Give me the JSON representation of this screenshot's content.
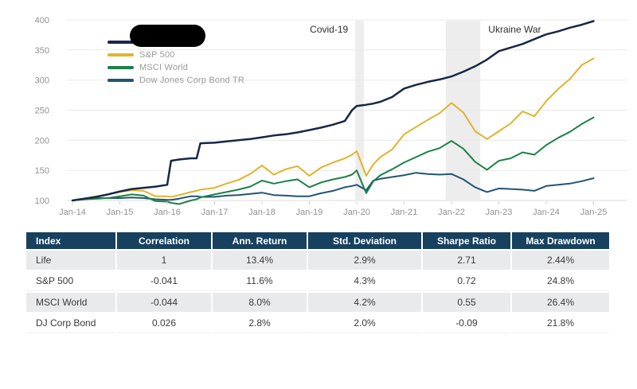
{
  "chart": {
    "legend": {
      "items": [
        {
          "label": "",
          "redacted": true,
          "color": "#182745"
        },
        {
          "label": "S&P 500",
          "redacted": false,
          "color": "#e2b32e"
        },
        {
          "label": "MSCI World",
          "redacted": false,
          "color": "#1e8049"
        },
        {
          "label": "Dow Jones Corp Bond TR",
          "redacted": false,
          "color": "#215571"
        }
      ]
    }
  },
  "chart_data": {
    "type": "line",
    "title": "",
    "xlabel": "",
    "ylabel": "",
    "x_unit": "decimal year",
    "grid": true,
    "legend_position": "top-left",
    "ylim": [
      100,
      400
    ],
    "yticks": [
      100,
      150,
      200,
      250,
      300,
      350,
      400
    ],
    "xtick_labels": [
      "Jan-14",
      "Jan-15",
      "Jan-16",
      "Jan-17",
      "Jan-18",
      "Jan-19",
      "Jan-20",
      "Jan-21",
      "Jan-22",
      "Jan-23",
      "Jan-24",
      "Jan-25"
    ],
    "x": [
      2014,
      2014.25,
      2014.5,
      2014.75,
      2015,
      2015.25,
      2015.5,
      2015.75,
      2016,
      2016.08,
      2016.25,
      2016.5,
      2016.62,
      2016.7,
      2017,
      2017.25,
      2017.5,
      2017.75,
      2018,
      2018.25,
      2018.5,
      2018.75,
      2019,
      2019.25,
      2019.5,
      2019.75,
      2019.9,
      2020,
      2020.2,
      2020.35,
      2020.5,
      2020.75,
      2021,
      2021.25,
      2021.5,
      2021.75,
      2022,
      2022.25,
      2022.5,
      2022.75,
      2023,
      2023.25,
      2023.5,
      2023.75,
      2024,
      2024.25,
      2024.5,
      2024.75,
      2025
    ],
    "series": [
      {
        "name": "Life",
        "legend_label_redacted": true,
        "color": "#182745",
        "values": [
          100,
          103,
          106,
          110,
          115,
          119,
          121,
          123,
          126,
          166,
          168,
          170,
          170,
          195,
          196,
          198,
          200,
          202,
          205,
          208,
          210,
          213,
          217,
          221,
          226,
          232,
          250,
          257,
          259,
          261,
          264,
          272,
          286,
          292,
          297,
          301,
          306,
          314,
          323,
          334,
          348,
          354,
          360,
          368,
          376,
          381,
          387,
          392,
          398
        ]
      },
      {
        "name": "S&P 500",
        "legend_label_redacted": false,
        "color": "#e2b32e",
        "values": [
          100,
          103,
          107,
          110,
          114,
          117,
          116,
          107,
          107,
          106,
          109,
          114,
          116,
          118,
          121,
          128,
          134,
          144,
          158,
          143,
          152,
          157,
          141,
          155,
          163,
          170,
          176,
          182,
          141,
          160,
          172,
          185,
          210,
          222,
          234,
          245,
          262,
          246,
          215,
          202,
          215,
          228,
          248,
          240,
          265,
          285,
          302,
          325,
          336
        ]
      },
      {
        "name": "MSCI World",
        "legend_label_redacted": false,
        "color": "#1e8049",
        "values": [
          100,
          102,
          104,
          104,
          107,
          110,
          108,
          99,
          98,
          96,
          94,
          100,
          102,
          105,
          110,
          114,
          118,
          123,
          133,
          128,
          132,
          135,
          122,
          130,
          135,
          139,
          143,
          150,
          112,
          132,
          142,
          152,
          163,
          172,
          181,
          187,
          199,
          186,
          164,
          151,
          166,
          170,
          180,
          176,
          192,
          204,
          214,
          227,
          238
        ]
      },
      {
        "name": "DJ Corp Bond",
        "legend_label_redacted": false,
        "color": "#215571",
        "values": [
          100,
          102,
          103,
          104,
          104,
          105,
          104,
          102,
          101,
          101,
          103,
          107,
          107,
          106,
          106,
          108,
          109,
          111,
          113,
          109,
          108,
          107,
          107,
          112,
          116,
          122,
          124,
          126,
          117,
          133,
          136,
          139,
          142,
          146,
          144,
          143,
          144,
          135,
          122,
          114,
          120,
          119,
          118,
          116,
          124,
          126,
          128,
          132,
          137
        ]
      }
    ],
    "annotations": [
      {
        "label": "Covid-19",
        "x_start": 2019.97,
        "x_end": 2020.15,
        "label_side": "left"
      },
      {
        "label": "Ukraine War",
        "x_start": 2021.88,
        "x_end": 2022.61,
        "label_side": "right"
      }
    ]
  },
  "table": {
    "columns": [
      "Index",
      "Correlation",
      "Ann. Return",
      "Std. Deviation",
      "Sharpe Ratio",
      "Max Drawdown"
    ],
    "rows": [
      [
        "Life",
        "1",
        "13.4%",
        "2.9%",
        "2.71",
        "2.44%"
      ],
      [
        "S&P 500",
        "-0.041",
        "11.6%",
        "4.3%",
        "0.72",
        "24.8%"
      ],
      [
        "MSCI World",
        "-0.044",
        "8.0%",
        "4.2%",
        "0.55",
        "26.4%"
      ],
      [
        "DJ Corp Bond",
        "0.026",
        "2.8%",
        "2.0%",
        "-0.09",
        "21.8%"
      ]
    ]
  },
  "colors": {
    "table_header_bg": "#17415f",
    "row_stripe": "#e9eaeb",
    "gridline": "#e9e9e9",
    "event_band": "#e9e9e9",
    "axis_text": "#919191",
    "annotation_text": "#2f2f2f",
    "redaction": "#000000"
  }
}
